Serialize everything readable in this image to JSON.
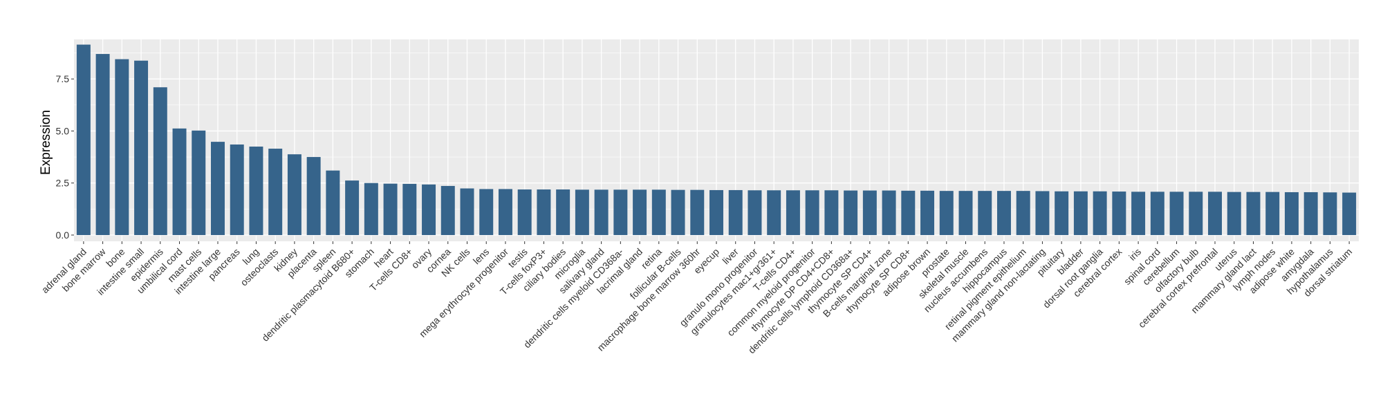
{
  "chart_data": {
    "type": "bar",
    "title": "",
    "xlabel": "",
    "ylabel": "Expression",
    "ylim": [
      -0.3,
      9.4
    ],
    "yticks": [
      0.0,
      2.5,
      5.0,
      7.5
    ],
    "ytick_labels": [
      "0.0",
      "2.5",
      "5.0",
      "7.5"
    ],
    "grid": true,
    "legend": "none",
    "colors": {
      "bar": "#36648b",
      "panel": "#ebebeb",
      "grid": "#ffffff",
      "axis_text": "#333333"
    },
    "categories": [
      "adrenal gland",
      "bone marrow",
      "bone",
      "intestine small",
      "epidermis",
      "umbilical cord",
      "mast cells",
      "intestine large",
      "pancreas",
      "lung",
      "osteoclasts",
      "kidney",
      "placenta",
      "spleen",
      "dendritic plasmacytoid B680+",
      "stomach",
      "heart",
      "T-cells CD8+",
      "ovary",
      "cornea",
      "NK cells",
      "lens",
      "mega erythrocyte progenitor",
      "testis",
      "T-cells foxP3+",
      "ciliary bodies",
      "microglia",
      "salivary gland",
      "dendritic cells myeloid CD368a-",
      "lacrimal gland",
      "retina",
      "follicular B-cells",
      "macrophage bone marrow 360hr",
      "eyecup",
      "liver",
      "granulo mono progenitor",
      "granulocytes mac1+gr361+",
      "T-cells CD4+",
      "common myeloid progenitor",
      "thymocyte DP CD4+CD8+",
      "dendritic cells lymphoid CD368a+",
      "thymocyte SP CD4+",
      "B-cells marginal zone",
      "thymocyte SP CD8+",
      "adipose brown",
      "prostate",
      "skeletal muscle",
      "nucleus accumbens",
      "hippocampus",
      "retinal pigment epithelium",
      "mammary gland non-lactating",
      "pituitary",
      "bladder",
      "dorsal root ganglia",
      "cerebral cortex",
      "iris",
      "spinal cord",
      "cerebellum",
      "olfactory bulb",
      "cerebral cortex prefrontal",
      "uterus",
      "mammary gland lact",
      "lymph nodes",
      "adipose white",
      "amygdala",
      "hypothalamus",
      "dorsal striatum"
    ],
    "values": [
      9.15,
      8.7,
      8.45,
      8.38,
      7.1,
      5.12,
      5.02,
      4.48,
      4.35,
      4.25,
      4.15,
      3.88,
      3.75,
      3.1,
      2.62,
      2.5,
      2.47,
      2.46,
      2.43,
      2.36,
      2.24,
      2.21,
      2.21,
      2.19,
      2.19,
      2.19,
      2.18,
      2.18,
      2.18,
      2.18,
      2.18,
      2.17,
      2.17,
      2.16,
      2.16,
      2.15,
      2.15,
      2.15,
      2.15,
      2.15,
      2.14,
      2.14,
      2.14,
      2.13,
      2.13,
      2.12,
      2.12,
      2.12,
      2.12,
      2.12,
      2.11,
      2.1,
      2.1,
      2.1,
      2.09,
      2.08,
      2.08,
      2.08,
      2.08,
      2.08,
      2.07,
      2.07,
      2.07,
      2.06,
      2.06,
      2.05,
      2.04
    ]
  }
}
